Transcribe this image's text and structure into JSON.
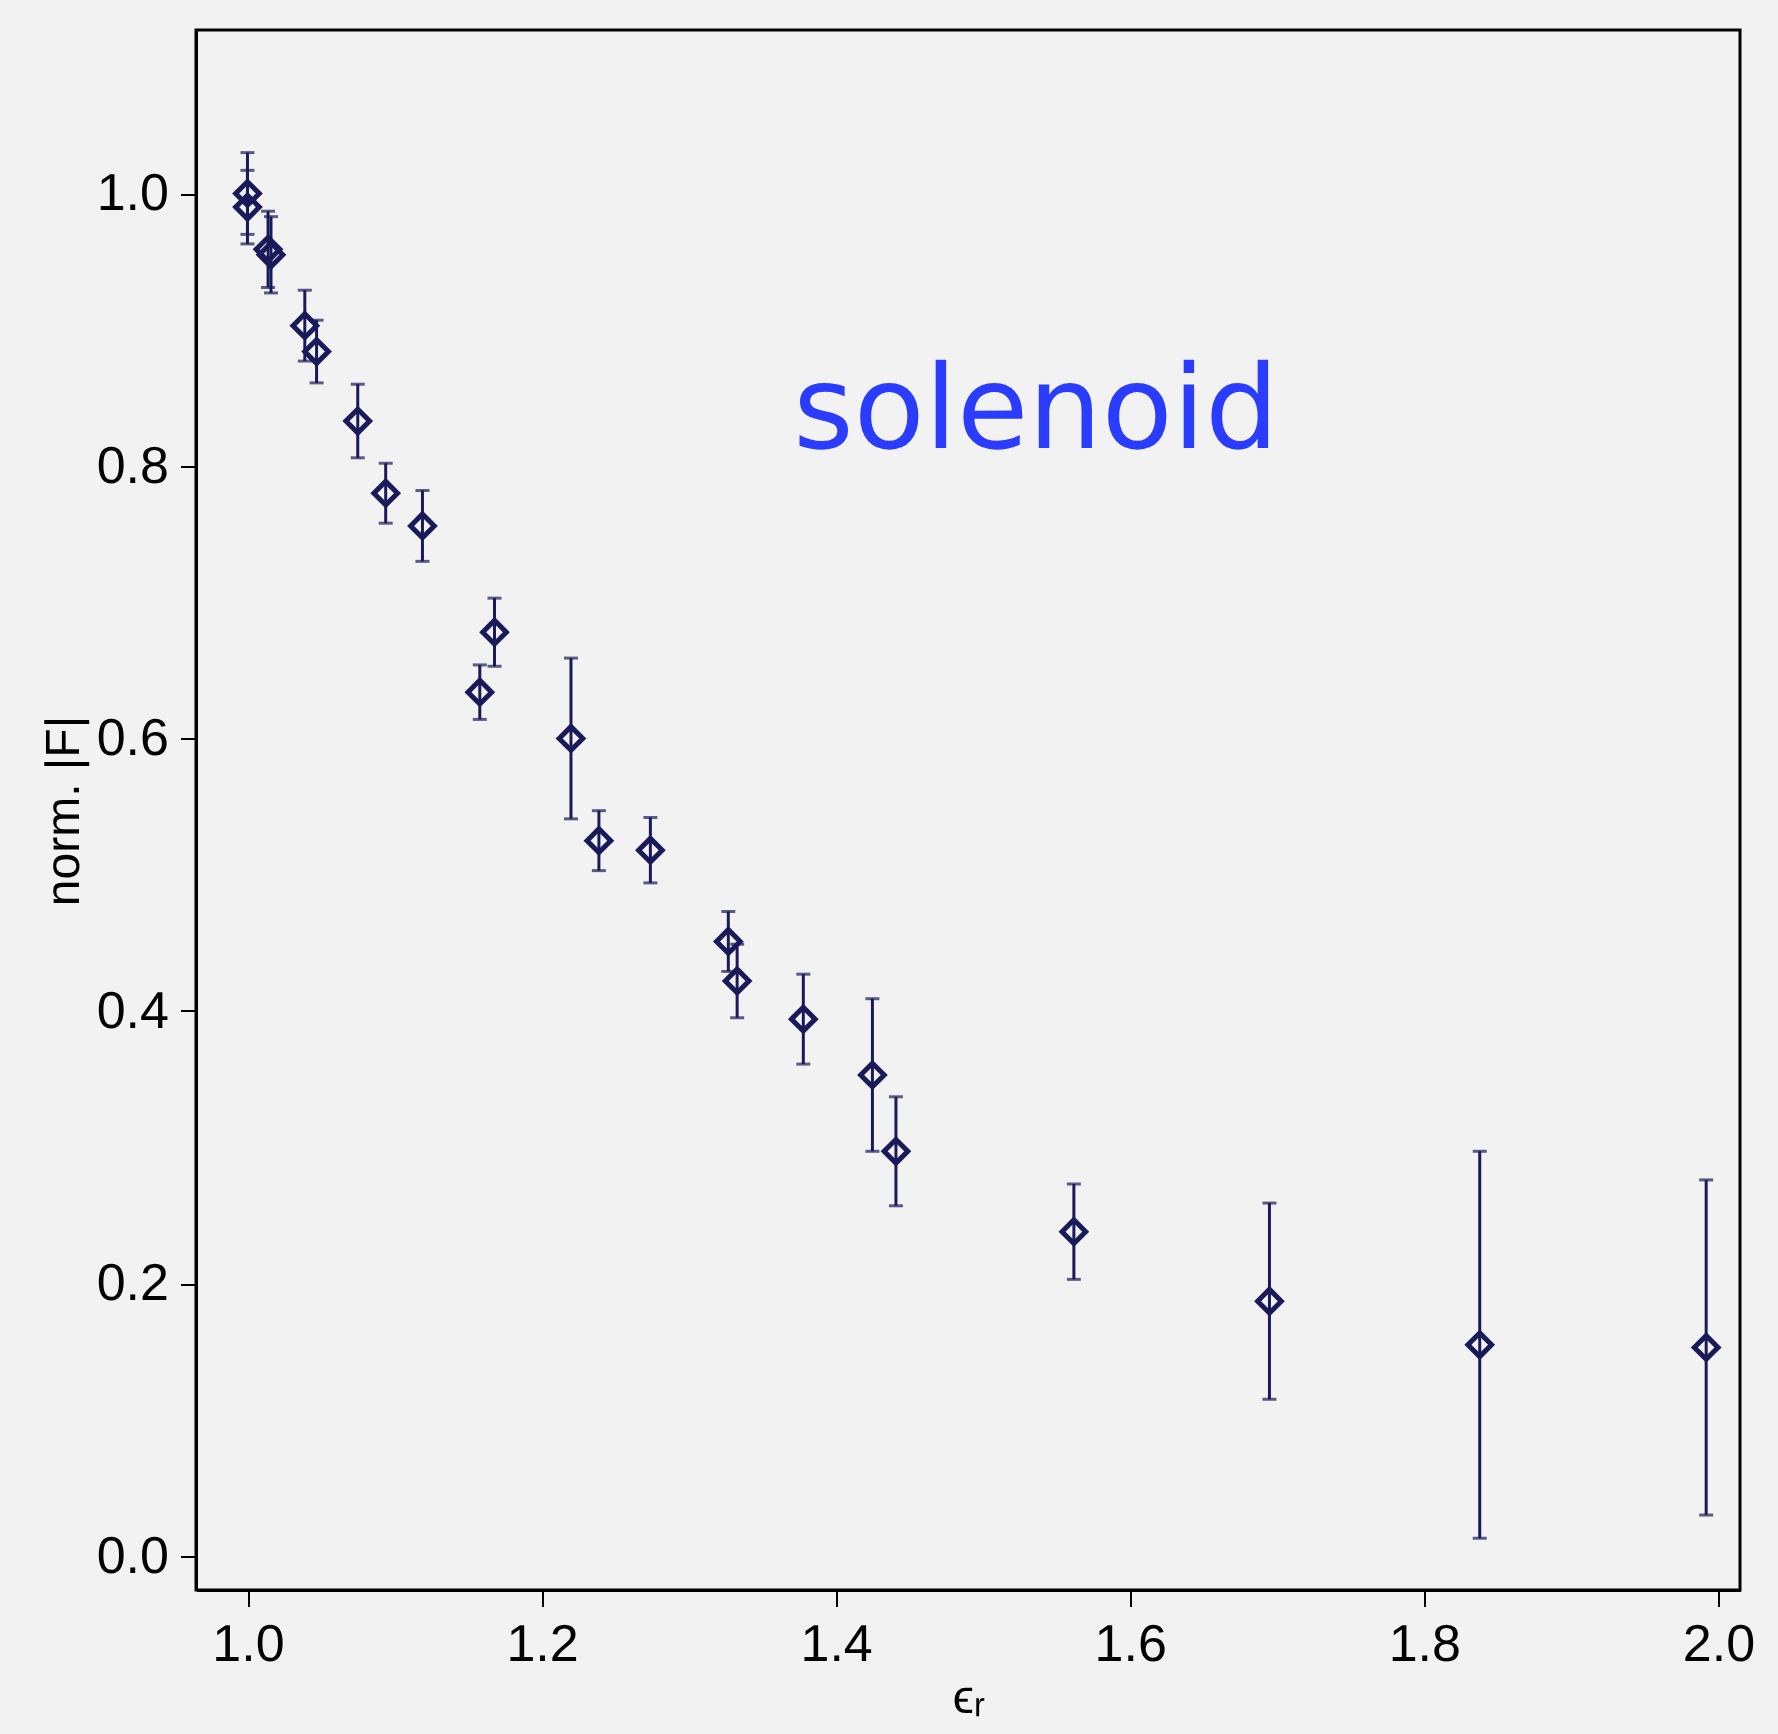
{
  "chart_data": {
    "type": "scatter",
    "xlabel": "ϵᵣ",
    "ylabel": "norm. |F|",
    "annotations": [
      "solenoid"
    ],
    "x": [
      1.0,
      1.0,
      1.014,
      1.016,
      1.039,
      1.047,
      1.075,
      1.094,
      1.119,
      1.158,
      1.168,
      1.22,
      1.239,
      1.274,
      1.327,
      1.333,
      1.378,
      1.425,
      1.441,
      1.562,
      1.695,
      1.838,
      1.992
    ],
    "series": [
      {
        "color": "#1a1a5a",
        "values": [
          1.0,
          0.99,
          0.959,
          0.955,
          0.903,
          0.884,
          0.833,
          0.78,
          0.756,
          0.634,
          0.678,
          0.6,
          0.525,
          0.518,
          0.451,
          0.422,
          0.394,
          0.353,
          0.297,
          0.238,
          0.187,
          0.155,
          0.153
        ],
        "errors": [
          0.03,
          0.027,
          0.028,
          0.028,
          0.026,
          0.023,
          0.027,
          0.022,
          0.026,
          0.02,
          0.025,
          0.059,
          0.022,
          0.024,
          0.022,
          0.027,
          0.033,
          0.056,
          0.04,
          0.035,
          0.072,
          0.142,
          0.123
        ]
      }
    ],
    "xlim": [
      0.965,
      2.015
    ],
    "ylim": [
      -0.025,
      1.12
    ],
    "xticks": [
      {
        "value": 1.0,
        "label": "1.0"
      },
      {
        "value": 1.2,
        "label": "1.2"
      },
      {
        "value": 1.4,
        "label": "1.4"
      },
      {
        "value": 1.6,
        "label": "1.6"
      },
      {
        "value": 1.8,
        "label": "1.8"
      },
      {
        "value": 2.0,
        "label": "2.0"
      }
    ],
    "yticks": [
      {
        "value": 0.0,
        "label": "0.0"
      },
      0.2,
      0.4,
      0.6,
      0.8,
      {
        "value": 1.0,
        "label": "1.0"
      }
    ],
    "marker": "diamond",
    "grid": false
  }
}
